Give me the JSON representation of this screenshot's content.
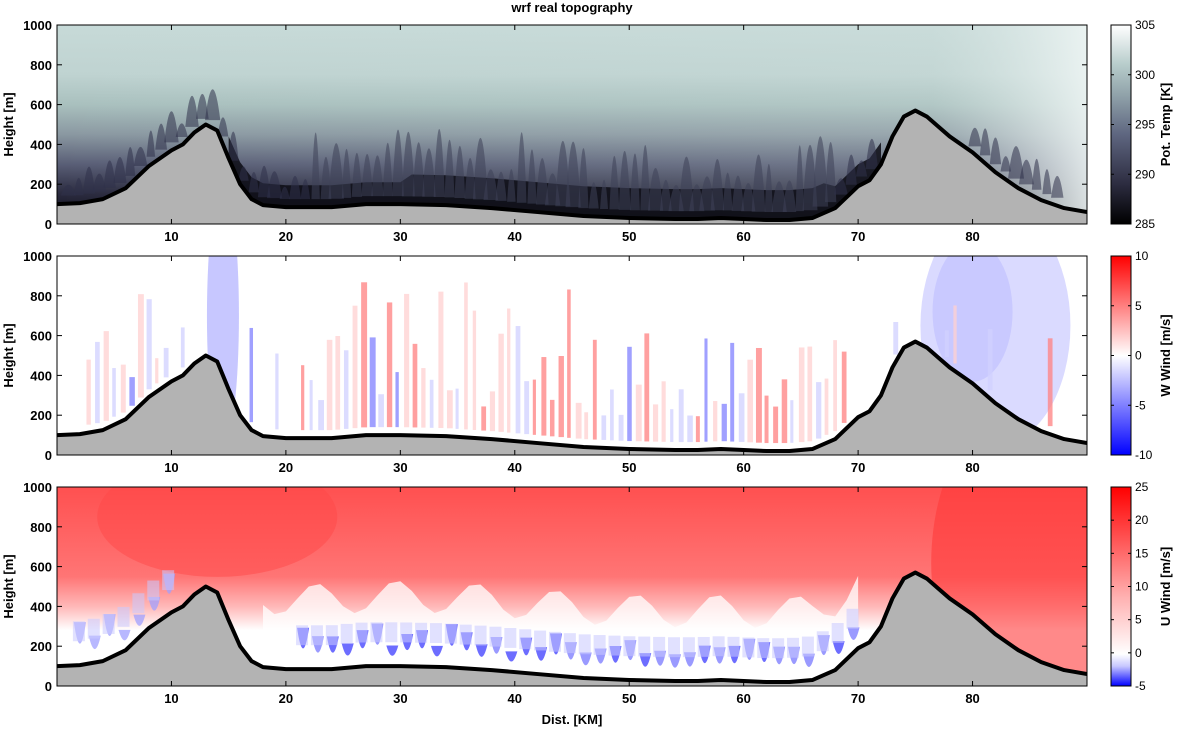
{
  "figure_title": "wrf real topography",
  "x_axis_label": "Dist. [KM]",
  "chart_data": [
    {
      "type": "heatmap",
      "title": "wrf real topography",
      "xlabel": "",
      "ylabel": "Height [m]",
      "colorbar_label": "Pot. Temp [K]",
      "xlim": [
        0,
        90
      ],
      "ylim": [
        0,
        1000
      ],
      "x_ticks": [
        "10",
        "20",
        "30",
        "40",
        "50",
        "60",
        "70",
        "80"
      ],
      "y_ticks": [
        "0",
        "200",
        "400",
        "600",
        "800",
        "1000"
      ],
      "colorbar_range": [
        285,
        305
      ],
      "colorbar_ticks": [
        "285",
        "290",
        "295",
        "300",
        "305"
      ],
      "colormap": "bone",
      "colorbar_colors": [
        "#0a0a12",
        "#2c2c40",
        "#5a5f78",
        "#8c9aa3",
        "#bacfcd",
        "#dbe9e7",
        "#ffffff"
      ]
    },
    {
      "type": "heatmap",
      "title": "",
      "xlabel": "",
      "ylabel": "Height [m]",
      "colorbar_label": "W Wind [m/s]",
      "xlim": [
        0,
        90
      ],
      "ylim": [
        0,
        1000
      ],
      "x_ticks": [
        "10",
        "20",
        "30",
        "40",
        "50",
        "60",
        "70",
        "80"
      ],
      "y_ticks": [
        "0",
        "200",
        "400",
        "600",
        "800",
        "1000"
      ],
      "colorbar_range": [
        -10,
        10
      ],
      "colorbar_ticks": [
        "-10",
        "-5",
        "0",
        "5",
        "10"
      ],
      "colormap": "blue-white-red",
      "colorbar_colors": [
        "#0000ff",
        "#ffffff",
        "#ff0000"
      ]
    },
    {
      "type": "heatmap",
      "title": "",
      "xlabel": "Dist. [KM]",
      "ylabel": "Height [m]",
      "colorbar_label": "U Wind [m/s]",
      "xlim": [
        0,
        90
      ],
      "ylim": [
        0,
        1000
      ],
      "x_ticks": [
        "10",
        "20",
        "30",
        "40",
        "50",
        "60",
        "70",
        "80"
      ],
      "y_ticks": [
        "0",
        "200",
        "400",
        "600",
        "800",
        "1000"
      ],
      "colorbar_range": [
        -5,
        25
      ],
      "colorbar_ticks": [
        "-5",
        "0",
        "5",
        "10",
        "15",
        "20",
        "25"
      ],
      "colormap": "blue-white-red",
      "colorbar_colors": [
        "#0000ff",
        "#ffffff",
        "#ff0000"
      ]
    }
  ],
  "terrain": {
    "x": [
      0,
      2,
      4,
      6,
      8,
      10,
      11,
      12,
      13,
      14,
      15,
      16,
      17,
      18,
      20,
      22,
      24,
      26,
      27,
      28,
      30,
      34,
      38,
      42,
      46,
      50,
      54,
      56,
      58,
      60,
      62,
      64,
      66,
      68,
      70,
      71,
      72,
      73,
      74,
      75,
      76,
      77,
      78,
      80,
      82,
      84,
      86,
      88,
      90
    ],
    "y": [
      100,
      105,
      125,
      180,
      290,
      370,
      400,
      460,
      500,
      470,
      330,
      200,
      125,
      95,
      85,
      85,
      85,
      95,
      100,
      100,
      100,
      95,
      80,
      60,
      40,
      30,
      25,
      25,
      30,
      25,
      20,
      20,
      30,
      80,
      190,
      220,
      300,
      440,
      540,
      570,
      540,
      490,
      440,
      360,
      260,
      180,
      120,
      80,
      60
    ],
    "fill_color": "#b3b3b3",
    "line_color": "#000000"
  }
}
